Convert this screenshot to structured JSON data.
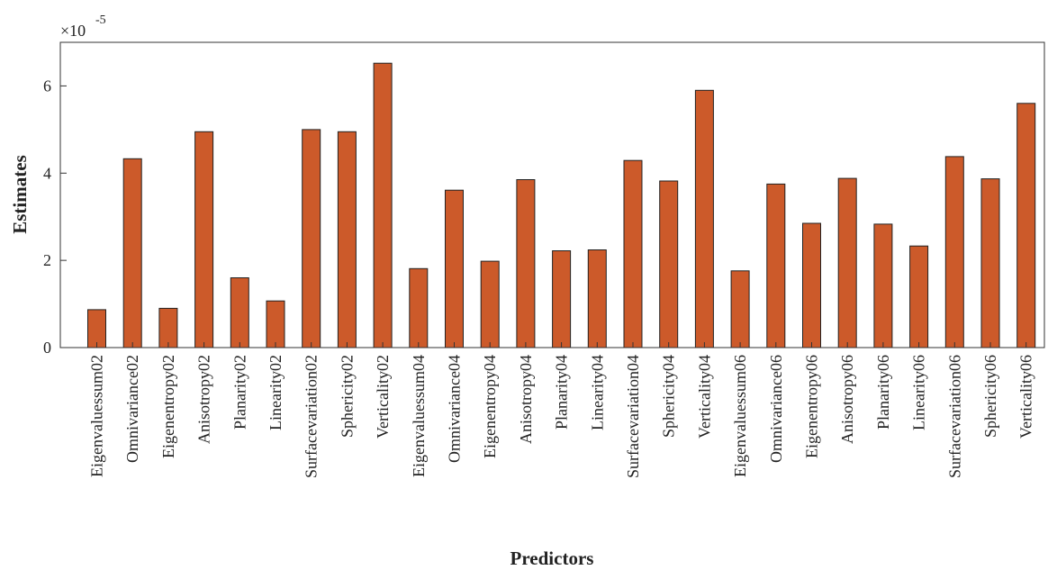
{
  "chart_data": {
    "type": "bar",
    "title": "",
    "xlabel": "Predictors",
    "ylabel": "Estimates",
    "y_multiplier": "×10",
    "y_multiplier_exponent": "-5",
    "ylim": [
      0,
      7
    ],
    "yticks": [
      "0",
      "2",
      "4",
      "6"
    ],
    "ytick_values": [
      0,
      2,
      4,
      6
    ],
    "grid": false,
    "legend": "none",
    "bar_color": "#CC5A2A",
    "categories": [
      "Eigenvaluessum02",
      "Omnivariance02",
      "Eigenentropy02",
      "Anisotropy02",
      "Planarity02",
      "Linearity02",
      "Surfacevariation02",
      "Sphericity02",
      "Verticality02",
      "Eigenvaluessum04",
      "Omnivariance04",
      "Eigenentropy04",
      "Anisotropy04",
      "Planarity04",
      "Linearity04",
      "Surfacevariation04",
      "Sphericity04",
      "Verticality04",
      "Eigenvaluessum06",
      "Omnivariance06",
      "Eigenentropy06",
      "Anisotropy06",
      "Planarity06",
      "Linearity06",
      "Surfacevariation06",
      "Sphericity06",
      "Verticality06"
    ],
    "values": [
      0.87,
      4.33,
      0.9,
      4.95,
      1.6,
      1.07,
      5.0,
      4.95,
      6.52,
      1.81,
      3.61,
      1.98,
      3.85,
      2.22,
      2.24,
      4.29,
      3.82,
      5.9,
      1.76,
      3.75,
      2.85,
      3.88,
      2.83,
      2.33,
      4.38,
      3.87,
      5.6
    ]
  }
}
